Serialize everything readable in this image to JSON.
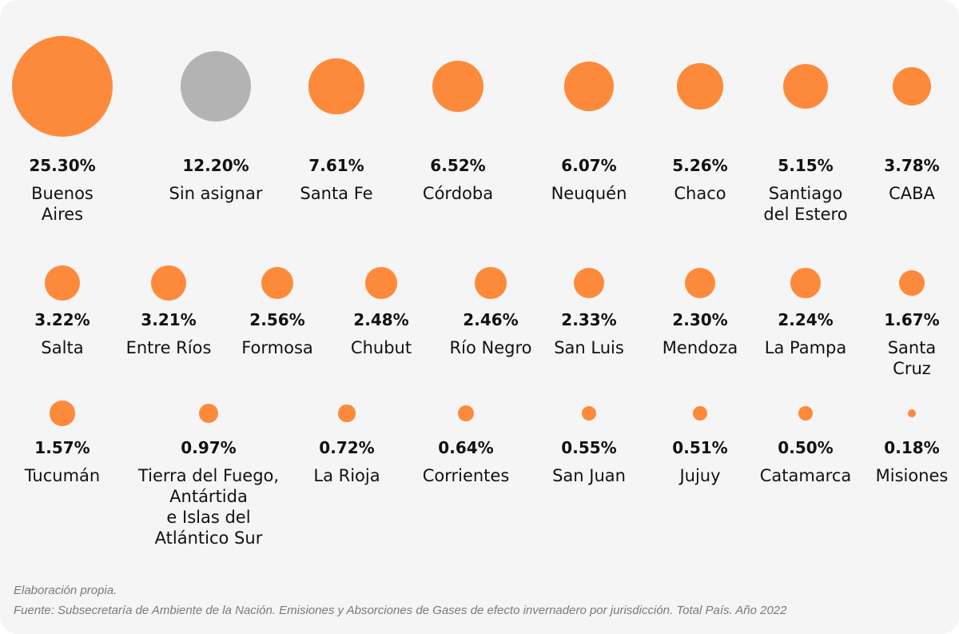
{
  "chart_data": {
    "type": "bubble",
    "colors": {
      "default": "#fd8a3b",
      "unassigned": "#b3b3b3"
    },
    "items": [
      {
        "name": "Buenos\nAires",
        "value": 25.3,
        "label": "25.30%",
        "color": "#fd8a3b"
      },
      {
        "name": "Sin asignar",
        "value": 12.2,
        "label": "12.20%",
        "color": "#b3b3b3"
      },
      {
        "name": "Santa Fe",
        "value": 7.61,
        "label": "7.61%",
        "color": "#fd8a3b"
      },
      {
        "name": "Córdoba",
        "value": 6.52,
        "label": "6.52%",
        "color": "#fd8a3b"
      },
      {
        "name": "Neuquén",
        "value": 6.07,
        "label": "6.07%",
        "color": "#fd8a3b"
      },
      {
        "name": "Chaco",
        "value": 5.26,
        "label": "5.26%",
        "color": "#fd8a3b"
      },
      {
        "name": "Santiago\ndel Estero",
        "value": 5.15,
        "label": "5.15%",
        "color": "#fd8a3b"
      },
      {
        "name": "CABA",
        "value": 3.78,
        "label": "3.78%",
        "color": "#fd8a3b"
      },
      {
        "name": "Salta",
        "value": 3.22,
        "label": "3.22%",
        "color": "#fd8a3b"
      },
      {
        "name": "Entre Ríos",
        "value": 3.21,
        "label": "3.21%",
        "color": "#fd8a3b"
      },
      {
        "name": "Formosa",
        "value": 2.56,
        "label": "2.56%",
        "color": "#fd8a3b"
      },
      {
        "name": "Chubut",
        "value": 2.48,
        "label": "2.48%",
        "color": "#fd8a3b"
      },
      {
        "name": "Río Negro",
        "value": 2.46,
        "label": "2.46%",
        "color": "#fd8a3b"
      },
      {
        "name": "San Luis",
        "value": 2.33,
        "label": "2.33%",
        "color": "#fd8a3b"
      },
      {
        "name": "Mendoza",
        "value": 2.3,
        "label": "2.30%",
        "color": "#fd8a3b"
      },
      {
        "name": "La Pampa",
        "value": 2.24,
        "label": "2.24%",
        "color": "#fd8a3b"
      },
      {
        "name": "Santa\nCruz",
        "value": 1.67,
        "label": "1.67%",
        "color": "#fd8a3b"
      },
      {
        "name": "Tucumán",
        "value": 1.57,
        "label": "1.57%",
        "color": "#fd8a3b"
      },
      {
        "name": "Tierra del Fuego,\nAntártida\ne Islas del\nAtlántico Sur",
        "value": 0.97,
        "label": "0.97%",
        "color": "#fd8a3b"
      },
      {
        "name": "La Rioja",
        "value": 0.72,
        "label": "0.72%",
        "color": "#fd8a3b"
      },
      {
        "name": "Corrientes",
        "value": 0.64,
        "label": "0.64%",
        "color": "#fd8a3b"
      },
      {
        "name": "San Juan",
        "value": 0.55,
        "label": "0.55%",
        "color": "#fd8a3b"
      },
      {
        "name": "Jujuy",
        "value": 0.51,
        "label": "0.51%",
        "color": "#fd8a3b"
      },
      {
        "name": "Catamarca",
        "value": 0.5,
        "label": "0.50%",
        "color": "#fd8a3b"
      },
      {
        "name": "Misiones",
        "value": 0.18,
        "label": "0.18%",
        "color": "#fd8a3b"
      }
    ]
  },
  "footer": {
    "note": "Elaboración propia.",
    "source": "Fuente: Subsecretaría de Ambiente de la Nación. Emisiones y Absorciones de Gases de efecto invernadero por jurisdicción. Total País. Año 2022"
  }
}
